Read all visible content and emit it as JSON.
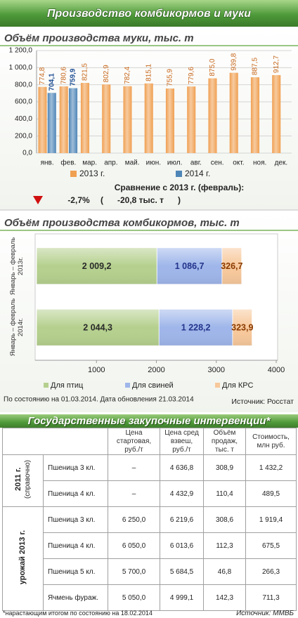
{
  "header": {
    "title": "Производство комбикормов и муки"
  },
  "chart_data": [
    {
      "type": "bar",
      "title": "Объём производства муки,  тыс. т",
      "categories": [
        "янв.",
        "фев.",
        "мар.",
        "апр.",
        "май.",
        "июн.",
        "июл.",
        "авг.",
        "сен.",
        "окт.",
        "ноя.",
        "дек."
      ],
      "series": [
        {
          "name": "2013 г.",
          "color": "#f0a052",
          "label_color": "#c8661a",
          "values": [
            774.8,
            780.6,
            821.5,
            802.9,
            782.4,
            815.1,
            755.9,
            779.6,
            875.0,
            939.8,
            887.5,
            912.7
          ],
          "value_labels": [
            "774,8",
            "780,6",
            "821,5",
            "802,9",
            "782,4",
            "815,1",
            "755,9",
            "779,6",
            "875,0",
            "939,8",
            "887,5",
            "912,7"
          ]
        },
        {
          "name": "2014 г.",
          "color": "#4f86b8",
          "label_color": "#1f4f94",
          "values": [
            704.1,
            759.9,
            null,
            null,
            null,
            null,
            null,
            null,
            null,
            null,
            null,
            null
          ],
          "value_labels": [
            "704,1",
            "759,9",
            null,
            null,
            null,
            null,
            null,
            null,
            null,
            null,
            null,
            null
          ]
        }
      ],
      "ylim": [
        0,
        1200
      ],
      "yticks": [
        {
          "value": 0,
          "label": "0,0"
        },
        {
          "value": 200,
          "label": "200,0"
        },
        {
          "value": 400,
          "label": "400,0"
        },
        {
          "value": 600,
          "label": "600,0"
        },
        {
          "value": 800,
          "label": "800,0"
        },
        {
          "value": 1000,
          "label": "1 000,0"
        },
        {
          "value": 1200,
          "label": "1 200,0"
        }
      ],
      "grid": true,
      "legend": "bottom"
    },
    {
      "type": "hbar",
      "title": "Объём производства комбикормов, тыс. т",
      "categories": [
        "Январь – февраль 2013г.",
        "Январь – февраль 2014г."
      ],
      "series": [
        {
          "name": "Для птиц",
          "color": "#b5d08e",
          "label_color": "#2a2a2a",
          "values": [
            2009.2,
            2044.3
          ],
          "value_labels": [
            "2 009,2",
            "2 044,3"
          ]
        },
        {
          "name": "Для свиней",
          "color": "#9fb6ea",
          "label_color": "#23338a",
          "values": [
            1086.7,
            1228.2
          ],
          "value_labels": [
            "1 086,7",
            "1 228,2"
          ]
        },
        {
          "name": "Для КРС",
          "color": "#f7c89b",
          "label_color": "#8a3a00",
          "values": [
            326.7,
            323.9
          ],
          "value_labels": [
            "326,7",
            "323,9"
          ]
        }
      ],
      "xlim": [
        0,
        4000
      ],
      "xticks": [
        1000,
        2000,
        3000,
        4000
      ],
      "grid": false,
      "legend": "bottom"
    }
  ],
  "comparison": {
    "title": "Сравнение с 2013 г. (февраль):",
    "change_pct": "-2,7%",
    "change_abs": "(      -20,8 тыс. т      )"
  },
  "notes": {
    "update": "По состоянию на 01.03.2014. Дата обновления 21.03.2014",
    "source": "Источник: Росстат"
  },
  "table": {
    "title": "Государственные закупочные  интервенции*",
    "columns": [
      "Цена стартовая, руб./т",
      "Цена сред взвеш, руб./т",
      "Объём продаж, тыс. т",
      "Стоимость, млн руб."
    ],
    "groups": [
      {
        "label": "2011 г.",
        "note": "(справочно)",
        "rows": [
          [
            "Пшеница 3 кл.",
            "–",
            "4 636,8",
            "308,9",
            "1 432,2"
          ],
          [
            "Пшеница 4 кл.",
            "–",
            "4 432,9",
            "110,4",
            "489,5"
          ]
        ]
      },
      {
        "label": "урожай 2013 г.",
        "rows": [
          [
            "Пшеница 3 кл.",
            "6 250,0",
            "6 219,6",
            "308,6",
            "1 919,4"
          ],
          [
            "Пшеница 4 кл.",
            "6 050,0",
            "6 013,6",
            "112,3",
            "675,5"
          ],
          [
            "Пшеница 5 кл.",
            "5 700,0",
            "5 684,5",
            "46,8",
            "266,3"
          ],
          [
            "Ячмень фураж.",
            "5 050,0",
            "4 999,1",
            "142,3",
            "711,3"
          ]
        ]
      }
    ],
    "footnote": "*нарастающим итогом по состоянию на 18.02.2014",
    "source": "Источник: ММВБ"
  }
}
